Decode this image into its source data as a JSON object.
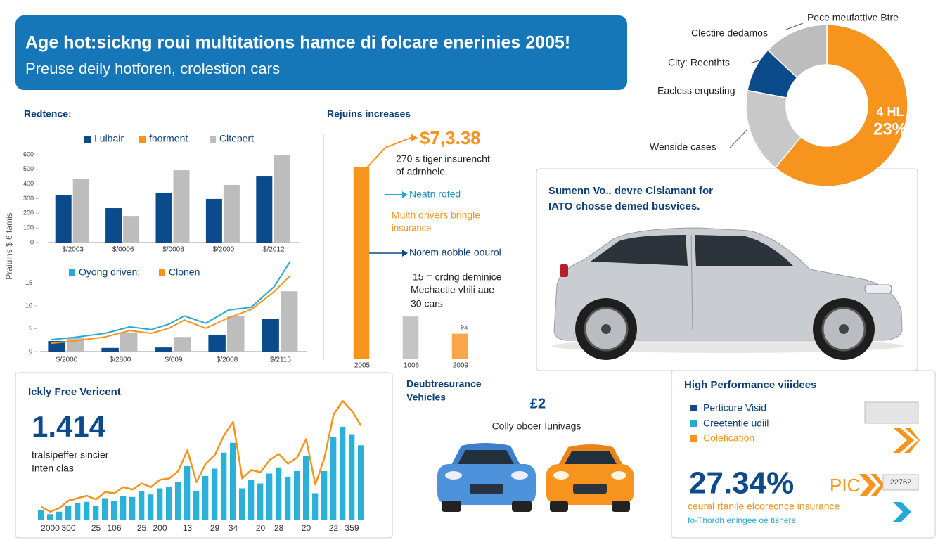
{
  "header": {
    "title": "Age hot:sickng roui multitations hamce di folcare enerinies 2005!",
    "subtitle": "Preuse deily hotforen, crolestion cars"
  },
  "chart_data": [
    {
      "type": "bar",
      "title": "Redtence:",
      "y_label": "Praiuins $ 6 tamis",
      "categories": [
        "$/2003",
        "$/0006",
        "$/0008",
        "$/2000",
        "$/2012"
      ],
      "series": [
        {
          "name": "I ulbair",
          "color": "#0b4a8b",
          "values": [
            326,
            235,
            341,
            298,
            451
          ]
        },
        {
          "name": "fhorment",
          "color": "#f7941d",
          "values": [
            null,
            null,
            null,
            null,
            null
          ]
        },
        {
          "name": "Cltepert",
          "color": "#bdbdbd",
          "values": [
            432,
            182,
            494,
            394,
            600
          ]
        }
      ],
      "ylim": [
        0,
        600
      ],
      "yticks": [
        0,
        100,
        200,
        300,
        400,
        500,
        600
      ]
    },
    {
      "type": "line",
      "categories": [
        "$/2000",
        "$/2800",
        "$/009",
        "$/2008",
        "$/2115"
      ],
      "xlim": [
        -0.5,
        4.5
      ],
      "ylim": [
        0,
        20
      ],
      "yticks": [
        0,
        5,
        10,
        15
      ],
      "series": [
        {
          "type": "bar",
          "color": "#0b4a8b",
          "values": [
            2.3,
            0.8,
            0.9,
            3.7,
            7.2
          ]
        },
        {
          "type": "bar",
          "color": "#bdbdbd",
          "values": [
            3.1,
            4.2,
            3.2,
            7.8,
            13.2
          ]
        },
        {
          "name": "Oyong driven:",
          "color": "#27a9d6",
          "x": [
            -0.3,
            0.13,
            0.72,
            1.18,
            1.58,
            1.91,
            2.2,
            2.6,
            3.03,
            3.45,
            3.88,
            4.18
          ],
          "values": [
            2.6,
            3.1,
            4.0,
            5.4,
            4.8,
            6.0,
            7.8,
            6.2,
            9.1,
            9.7,
            14.2,
            19.7
          ]
        },
        {
          "name": "Clonen",
          "color": "#f7941d",
          "x": [
            -0.3,
            0.13,
            0.72,
            1.18,
            1.58,
            1.91,
            2.2,
            2.6,
            3.03,
            3.45,
            3.88,
            4.18
          ],
          "values": [
            1.8,
            2.3,
            3.2,
            4.6,
            4.0,
            5.1,
            6.9,
            5.1,
            7.4,
            9.2,
            13.1,
            16.6
          ]
        }
      ]
    },
    {
      "type": "bar",
      "title": "Rejuins increases",
      "categories": [
        "2005",
        "1006",
        "2009"
      ],
      "values": [
        100,
        22,
        13
      ],
      "colors": [
        "#f7941d",
        "#c4c4c4",
        "#f9a64a"
      ],
      "ylim": [
        0,
        100
      ],
      "annotations": [
        "$7,3.38",
        "270 s tiger insurencht",
        "of adrnhele.",
        "Neatn roted",
        "Multh drivers bringle",
        "insurance",
        "Norem aobble oourol",
        "15 = crdng deminice",
        "Mechactie vhili aue",
        "30 cars",
        "9a"
      ]
    },
    {
      "type": "pie",
      "donut": true,
      "categories": [
        "Pece meufattive Btre",
        "Wenside cases",
        "Eacless erqusting",
        "City: Reenthts"
      ],
      "values": [
        61,
        17,
        9,
        13
      ],
      "colors": [
        "#f7941d",
        "#c8c8c8",
        "#0b4a8b",
        "#bdbdbd"
      ],
      "annotations": [
        "Clectire dedamos",
        "4 HL",
        "23%"
      ]
    },
    {
      "type": "bar",
      "title": "Ickly Free Vericent",
      "headline": "1.414",
      "text": [
        "tralsipeffer sincier",
        "Inten clas"
      ],
      "categories": [
        null,
        "2000",
        null,
        "300",
        null,
        null,
        "25",
        null,
        "106",
        null,
        null,
        "25",
        null,
        "200",
        null,
        null,
        "13",
        null,
        null,
        "29",
        null,
        "34",
        null,
        null,
        "20",
        null,
        "28",
        null,
        null,
        "20",
        null,
        null,
        "22",
        null,
        "359",
        null
      ],
      "ylim": [
        0,
        100
      ],
      "series": [
        {
          "color": "#2bb0d8",
          "values": [
            8,
            5,
            7,
            12,
            14,
            15,
            12,
            18,
            16,
            20,
            19,
            24,
            21,
            26,
            27,
            31,
            44,
            24,
            36,
            42,
            55,
            63,
            26,
            33,
            30,
            38,
            43,
            35,
            40,
            52,
            22,
            40,
            68,
            76,
            70,
            61
          ]
        },
        {
          "type": "line",
          "color": "#f7941d",
          "values": [
            11,
            7,
            10,
            16,
            18,
            20,
            17,
            23,
            22,
            27,
            25,
            30,
            27,
            33,
            34,
            40,
            57,
            31,
            46,
            53,
            69,
            80,
            34,
            41,
            39,
            49,
            54,
            46,
            51,
            66,
            29,
            51,
            86,
            97,
            89,
            77
          ]
        }
      ]
    }
  ],
  "car_panel": {
    "title": [
      "Sumenn Vo.. devre Clslamant for",
      "IATO chosse demed busvices."
    ]
  },
  "vehicles_panel": {
    "title": [
      "Deubtresurance",
      "Vehicles"
    ],
    "badge": "£2",
    "caption": "Colly oboer Iunivags"
  },
  "performance_panel": {
    "title": "High Performance viiidees",
    "items": [
      "Perticure Visid",
      "Creetentie udiil",
      "Colefication"
    ],
    "stat": "27.34%",
    "stat_suffix": "PIC",
    "code": "22762",
    "line1": "ceural rtanile elcorecnce insurance",
    "line2": "fo-Thordh eningee oe tishers"
  }
}
